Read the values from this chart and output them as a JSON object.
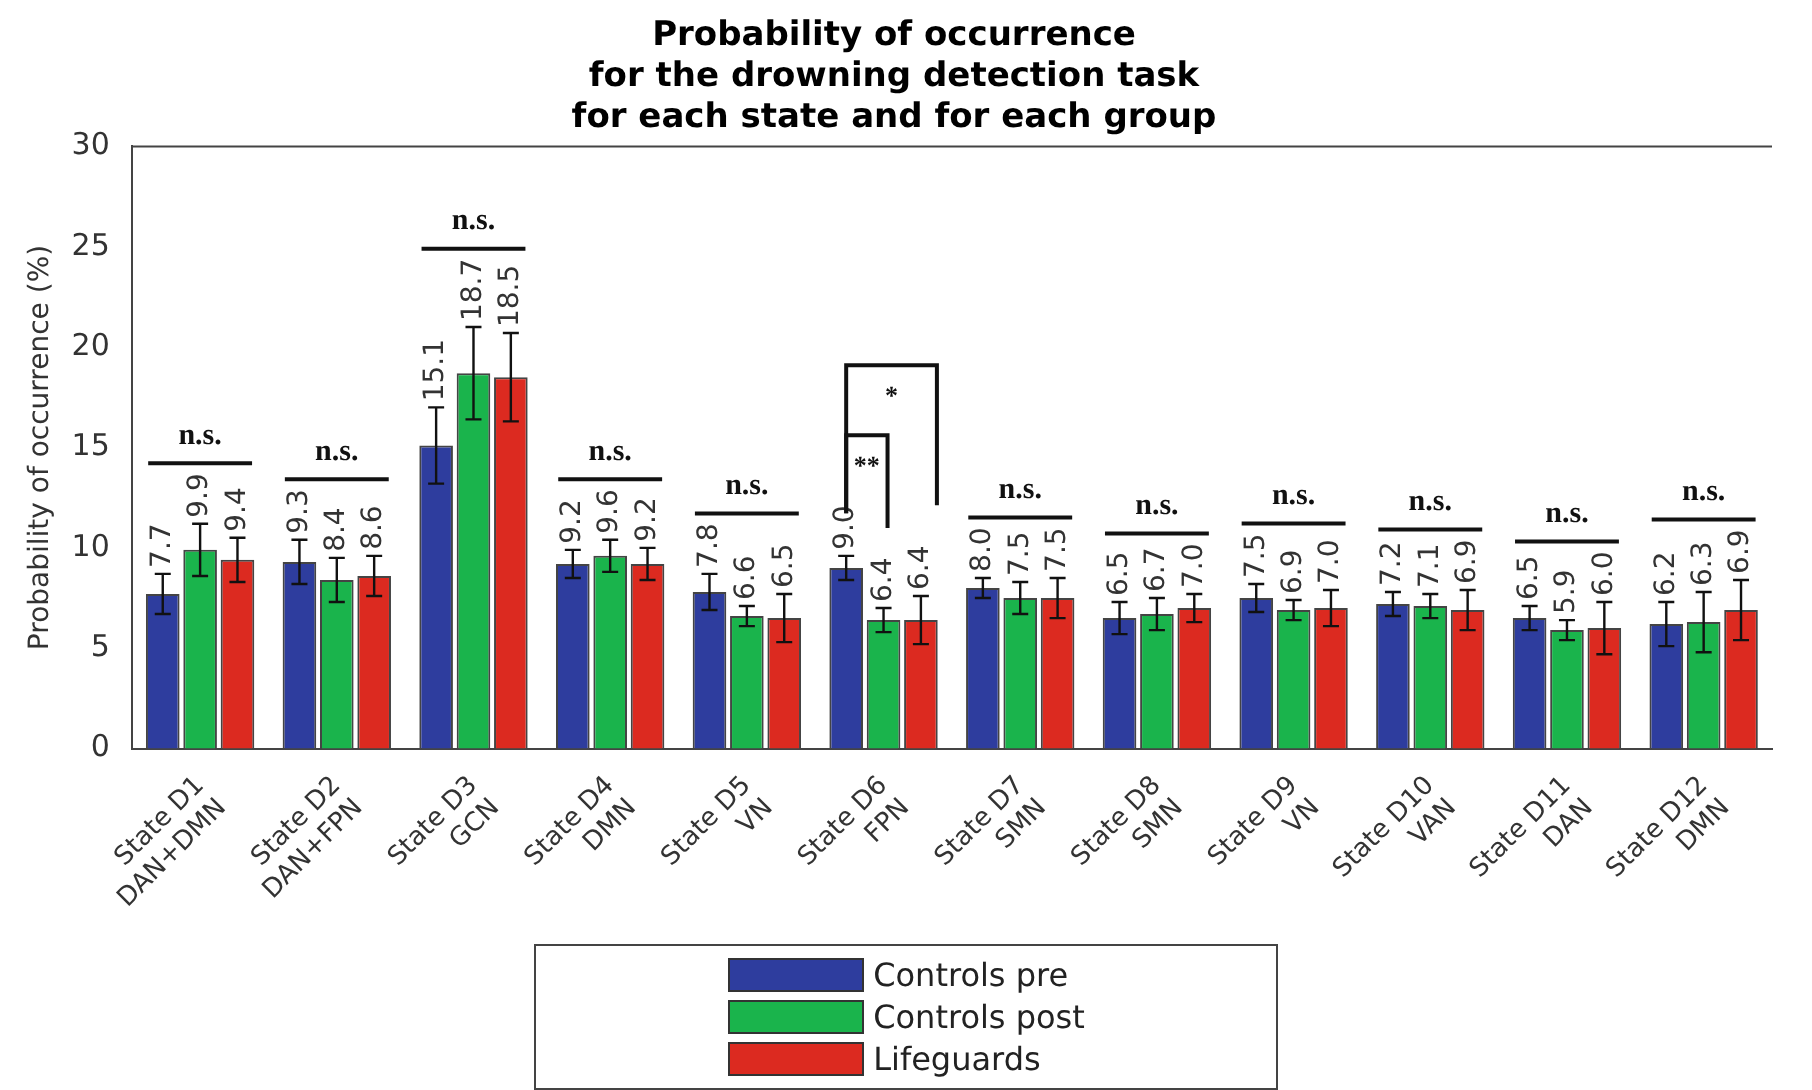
{
  "chart_data": {
    "type": "bar",
    "title": "Probability of occurrence\nfor the drowning detection task\nfor each state and for each group",
    "ylabel": "Probability of occurrence (%)",
    "categories": [
      "State D1\nDAN+DMN",
      "State D2\nDAN+FPN",
      "State D3\nGCN",
      "State D4\nDMN",
      "State D5\nVN",
      "State D6\nFPN",
      "State D7\nSMN",
      "State D8\nSMN",
      "State D9\nVN",
      "State D10\nVAN",
      "State D11\nDAN",
      "State D12\nDMN"
    ],
    "series": [
      {
        "name": "Controls pre",
        "color": "#2e3d9e",
        "values": [
          7.7,
          9.3,
          15.1,
          9.2,
          7.8,
          9.0,
          8.0,
          6.5,
          7.5,
          7.2,
          6.5,
          6.2
        ],
        "value_labels": [
          "7.7",
          "9.3",
          "15.1",
          "9.2",
          "7.8",
          "9.0",
          "8.0",
          "6.5",
          "7.5",
          "7.2",
          "6.5",
          "6.2"
        ],
        "errors": [
          1.0,
          1.1,
          1.9,
          0.7,
          0.9,
          0.6,
          0.5,
          0.8,
          0.7,
          0.6,
          0.6,
          1.1
        ]
      },
      {
        "name": "Controls post",
        "color": "#1ab44c",
        "values": [
          9.9,
          8.4,
          18.7,
          9.6,
          6.6,
          6.4,
          7.5,
          6.7,
          6.9,
          7.1,
          5.9,
          6.3
        ],
        "value_labels": [
          "9.9",
          "8.4",
          "18.7",
          "9.6",
          "6.6",
          "6.4",
          "7.5",
          "6.7",
          "6.9",
          "7.1",
          "5.9",
          "6.3"
        ],
        "errors": [
          1.3,
          1.1,
          2.3,
          0.8,
          0.5,
          0.6,
          0.8,
          0.8,
          0.5,
          0.6,
          0.5,
          1.5
        ]
      },
      {
        "name": "Lifeguards",
        "color": "#dc2a20",
        "values": [
          9.4,
          8.6,
          18.5,
          9.2,
          6.5,
          6.4,
          7.5,
          7.0,
          7.0,
          6.9,
          6.0,
          6.9
        ],
        "value_labels": [
          "9.4",
          "8.6",
          "18.5",
          "9.2",
          "6.5",
          "6.4",
          "7.5",
          "7.0",
          "7.0",
          "6.9",
          "6.0",
          "6.9"
        ],
        "errors": [
          1.1,
          1.0,
          2.2,
          0.8,
          1.2,
          1.2,
          1.0,
          0.7,
          0.9,
          1.0,
          1.3,
          1.5
        ]
      }
    ],
    "ylim": [
      0,
      30
    ],
    "yticks": [
      0,
      5,
      10,
      15,
      20,
      25,
      30
    ],
    "grid": false,
    "legend": "bottom",
    "annotations": [
      "n.s.",
      "n.s.",
      "n.s.",
      "n.s.",
      "n.s.",
      "*",
      "**",
      "n.s.",
      "n.s.",
      "n.s.",
      "n.s.",
      "n.s.",
      "n.s."
    ]
  }
}
